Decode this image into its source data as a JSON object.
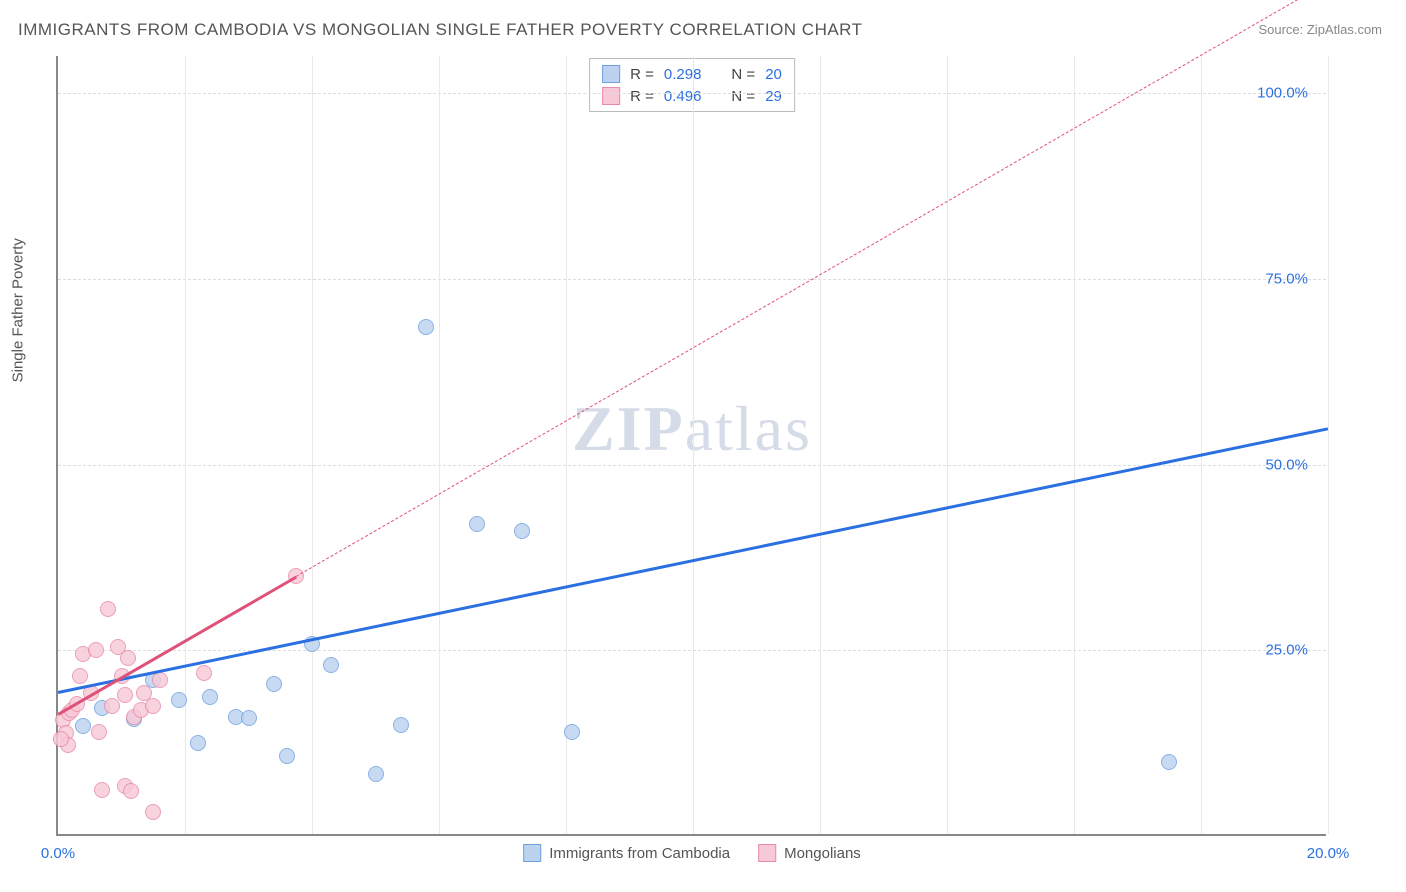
{
  "title": "IMMIGRANTS FROM CAMBODIA VS MONGOLIAN SINGLE FATHER POVERTY CORRELATION CHART",
  "source": "Source: ZipAtlas.com",
  "chart": {
    "type": "scatter",
    "xlim": [
      0.0,
      20.0
    ],
    "ylim": [
      0.0,
      105.0
    ],
    "x_ticks": [
      0.0,
      20.0
    ],
    "x_tick_labels": [
      "0.0%",
      "20.0%"
    ],
    "y_ticks": [
      25.0,
      50.0,
      75.0,
      100.0
    ],
    "y_tick_labels": [
      "25.0%",
      "50.0%",
      "75.0%",
      "100.0%"
    ],
    "y_axis_title": "Single Father Poverty",
    "x_axis_title": "",
    "background_color": "#ffffff",
    "grid_color": "#dddddd",
    "axis_color": "#888888",
    "tick_label_color": "#2b70e0",
    "point_radius": 8,
    "point_border_width": 1.2,
    "v_grid_positions_pct": [
      0,
      10,
      20,
      30,
      40,
      50,
      60,
      70,
      80,
      90,
      100
    ],
    "series": [
      {
        "name": "Immigrants from Cambodia",
        "fill": "#bcd3f0",
        "stroke": "#6fa1e0",
        "R": "0.298",
        "N": "20",
        "points": [
          {
            "x": 0.4,
            "y": 14.8
          },
          {
            "x": 0.7,
            "y": 17.2
          },
          {
            "x": 1.2,
            "y": 15.8
          },
          {
            "x": 1.5,
            "y": 21.0
          },
          {
            "x": 1.9,
            "y": 18.3
          },
          {
            "x": 2.2,
            "y": 12.5
          },
          {
            "x": 2.4,
            "y": 18.7
          },
          {
            "x": 2.8,
            "y": 16.0
          },
          {
            "x": 3.0,
            "y": 15.9
          },
          {
            "x": 3.4,
            "y": 20.5
          },
          {
            "x": 3.6,
            "y": 10.8
          },
          {
            "x": 4.0,
            "y": 25.8
          },
          {
            "x": 4.3,
            "y": 23.0
          },
          {
            "x": 5.0,
            "y": 8.3
          },
          {
            "x": 5.4,
            "y": 15.0
          },
          {
            "x": 5.8,
            "y": 68.5
          },
          {
            "x": 6.6,
            "y": 42.0
          },
          {
            "x": 7.3,
            "y": 41.0
          },
          {
            "x": 8.1,
            "y": 14.0
          },
          {
            "x": 17.5,
            "y": 10.0
          }
        ],
        "trend": {
          "color": "#2b70e0",
          "width": 2.5,
          "solid_from": {
            "x": 0.0,
            "y": 19.5
          },
          "solid_to": {
            "x": 20.0,
            "y": 55.0
          },
          "extrapolate_to": null
        }
      },
      {
        "name": "Mongolians",
        "fill": "#f7c9d6",
        "stroke": "#e88ba8",
        "R": "0.496",
        "N": "29",
        "points": [
          {
            "x": 0.08,
            "y": 15.6
          },
          {
            "x": 0.12,
            "y": 13.8
          },
          {
            "x": 0.15,
            "y": 12.2
          },
          {
            "x": 0.18,
            "y": 16.5
          },
          {
            "x": 0.22,
            "y": 17.0
          },
          {
            "x": 0.3,
            "y": 17.8
          },
          {
            "x": 0.35,
            "y": 21.5
          },
          {
            "x": 0.4,
            "y": 24.5
          },
          {
            "x": 0.52,
            "y": 19.2
          },
          {
            "x": 0.6,
            "y": 25.0
          },
          {
            "x": 0.65,
            "y": 14.0
          },
          {
            "x": 0.78,
            "y": 30.5
          },
          {
            "x": 0.85,
            "y": 17.5
          },
          {
            "x": 0.95,
            "y": 25.5
          },
          {
            "x": 1.0,
            "y": 21.5
          },
          {
            "x": 1.05,
            "y": 19.0
          },
          {
            "x": 1.1,
            "y": 24.0
          },
          {
            "x": 1.2,
            "y": 16.0
          },
          {
            "x": 1.3,
            "y": 17.0
          },
          {
            "x": 1.35,
            "y": 19.3
          },
          {
            "x": 1.5,
            "y": 17.5
          },
          {
            "x": 1.6,
            "y": 21.0
          },
          {
            "x": 0.7,
            "y": 6.2
          },
          {
            "x": 1.05,
            "y": 6.7
          },
          {
            "x": 1.15,
            "y": 6.0
          },
          {
            "x": 1.5,
            "y": 3.2
          },
          {
            "x": 2.3,
            "y": 22.0
          },
          {
            "x": 3.75,
            "y": 35.0
          },
          {
            "x": 0.05,
            "y": 13.0
          }
        ],
        "trend": {
          "color": "#e05178",
          "width": 2.5,
          "solid_from": {
            "x": 0.0,
            "y": 16.5
          },
          "solid_to": {
            "x": 3.75,
            "y": 35.0
          },
          "extrapolate_to": {
            "x": 20.0,
            "y": 115.0
          }
        }
      }
    ]
  },
  "legend_top": {
    "rows": [
      {
        "swatch_fill": "#bcd3f0",
        "swatch_stroke": "#6fa1e0",
        "r_label": "R =",
        "r_val": "0.298",
        "n_label": "N =",
        "n_val": "20"
      },
      {
        "swatch_fill": "#f7c9d6",
        "swatch_stroke": "#e88ba8",
        "r_label": "R =",
        "r_val": "0.496",
        "n_label": "N =",
        "n_val": "29"
      }
    ]
  },
  "legend_bottom": {
    "items": [
      {
        "swatch_fill": "#bcd3f0",
        "swatch_stroke": "#6fa1e0",
        "label": "Immigrants from Cambodia"
      },
      {
        "swatch_fill": "#f7c9d6",
        "swatch_stroke": "#e88ba8",
        "label": "Mongolians"
      }
    ]
  },
  "watermark": {
    "part1": "ZIP",
    "part2": "atlas"
  }
}
